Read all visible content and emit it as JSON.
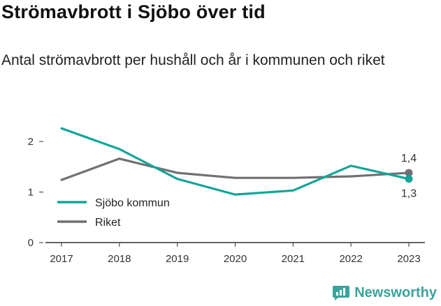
{
  "header": {
    "title": "Strömavbrott i Sjöbo över tid",
    "subtitle": "Antal strömavbrott per hushåll och år i kommunen och riket"
  },
  "brand": {
    "name": "Newsworthy",
    "color": "#3aa39b"
  },
  "colors": {
    "sjobo": "#12a596",
    "riket": "#707074",
    "axis": "#333333"
  },
  "chart_data": {
    "type": "line",
    "x": [
      2017,
      2018,
      2019,
      2020,
      2021,
      2022,
      2023
    ],
    "series": [
      {
        "name": "Sjöbo kommun",
        "color": "#12a596",
        "values": [
          2.26,
          1.85,
          1.26,
          0.95,
          1.03,
          1.52,
          1.26
        ],
        "end_label": "1,3"
      },
      {
        "name": "Riket",
        "color": "#707074",
        "values": [
          1.24,
          1.66,
          1.38,
          1.28,
          1.28,
          1.31,
          1.38
        ],
        "end_label": "1,4"
      }
    ],
    "yticks": [
      0,
      1,
      2
    ],
    "ytick_labels": [
      "0",
      "1",
      "2"
    ],
    "xtick_labels": [
      "2017",
      "2018",
      "2019",
      "2020",
      "2021",
      "2022",
      "2023"
    ],
    "ylim": [
      0,
      2.5
    ],
    "grid": false,
    "legend": "bottom-left"
  }
}
